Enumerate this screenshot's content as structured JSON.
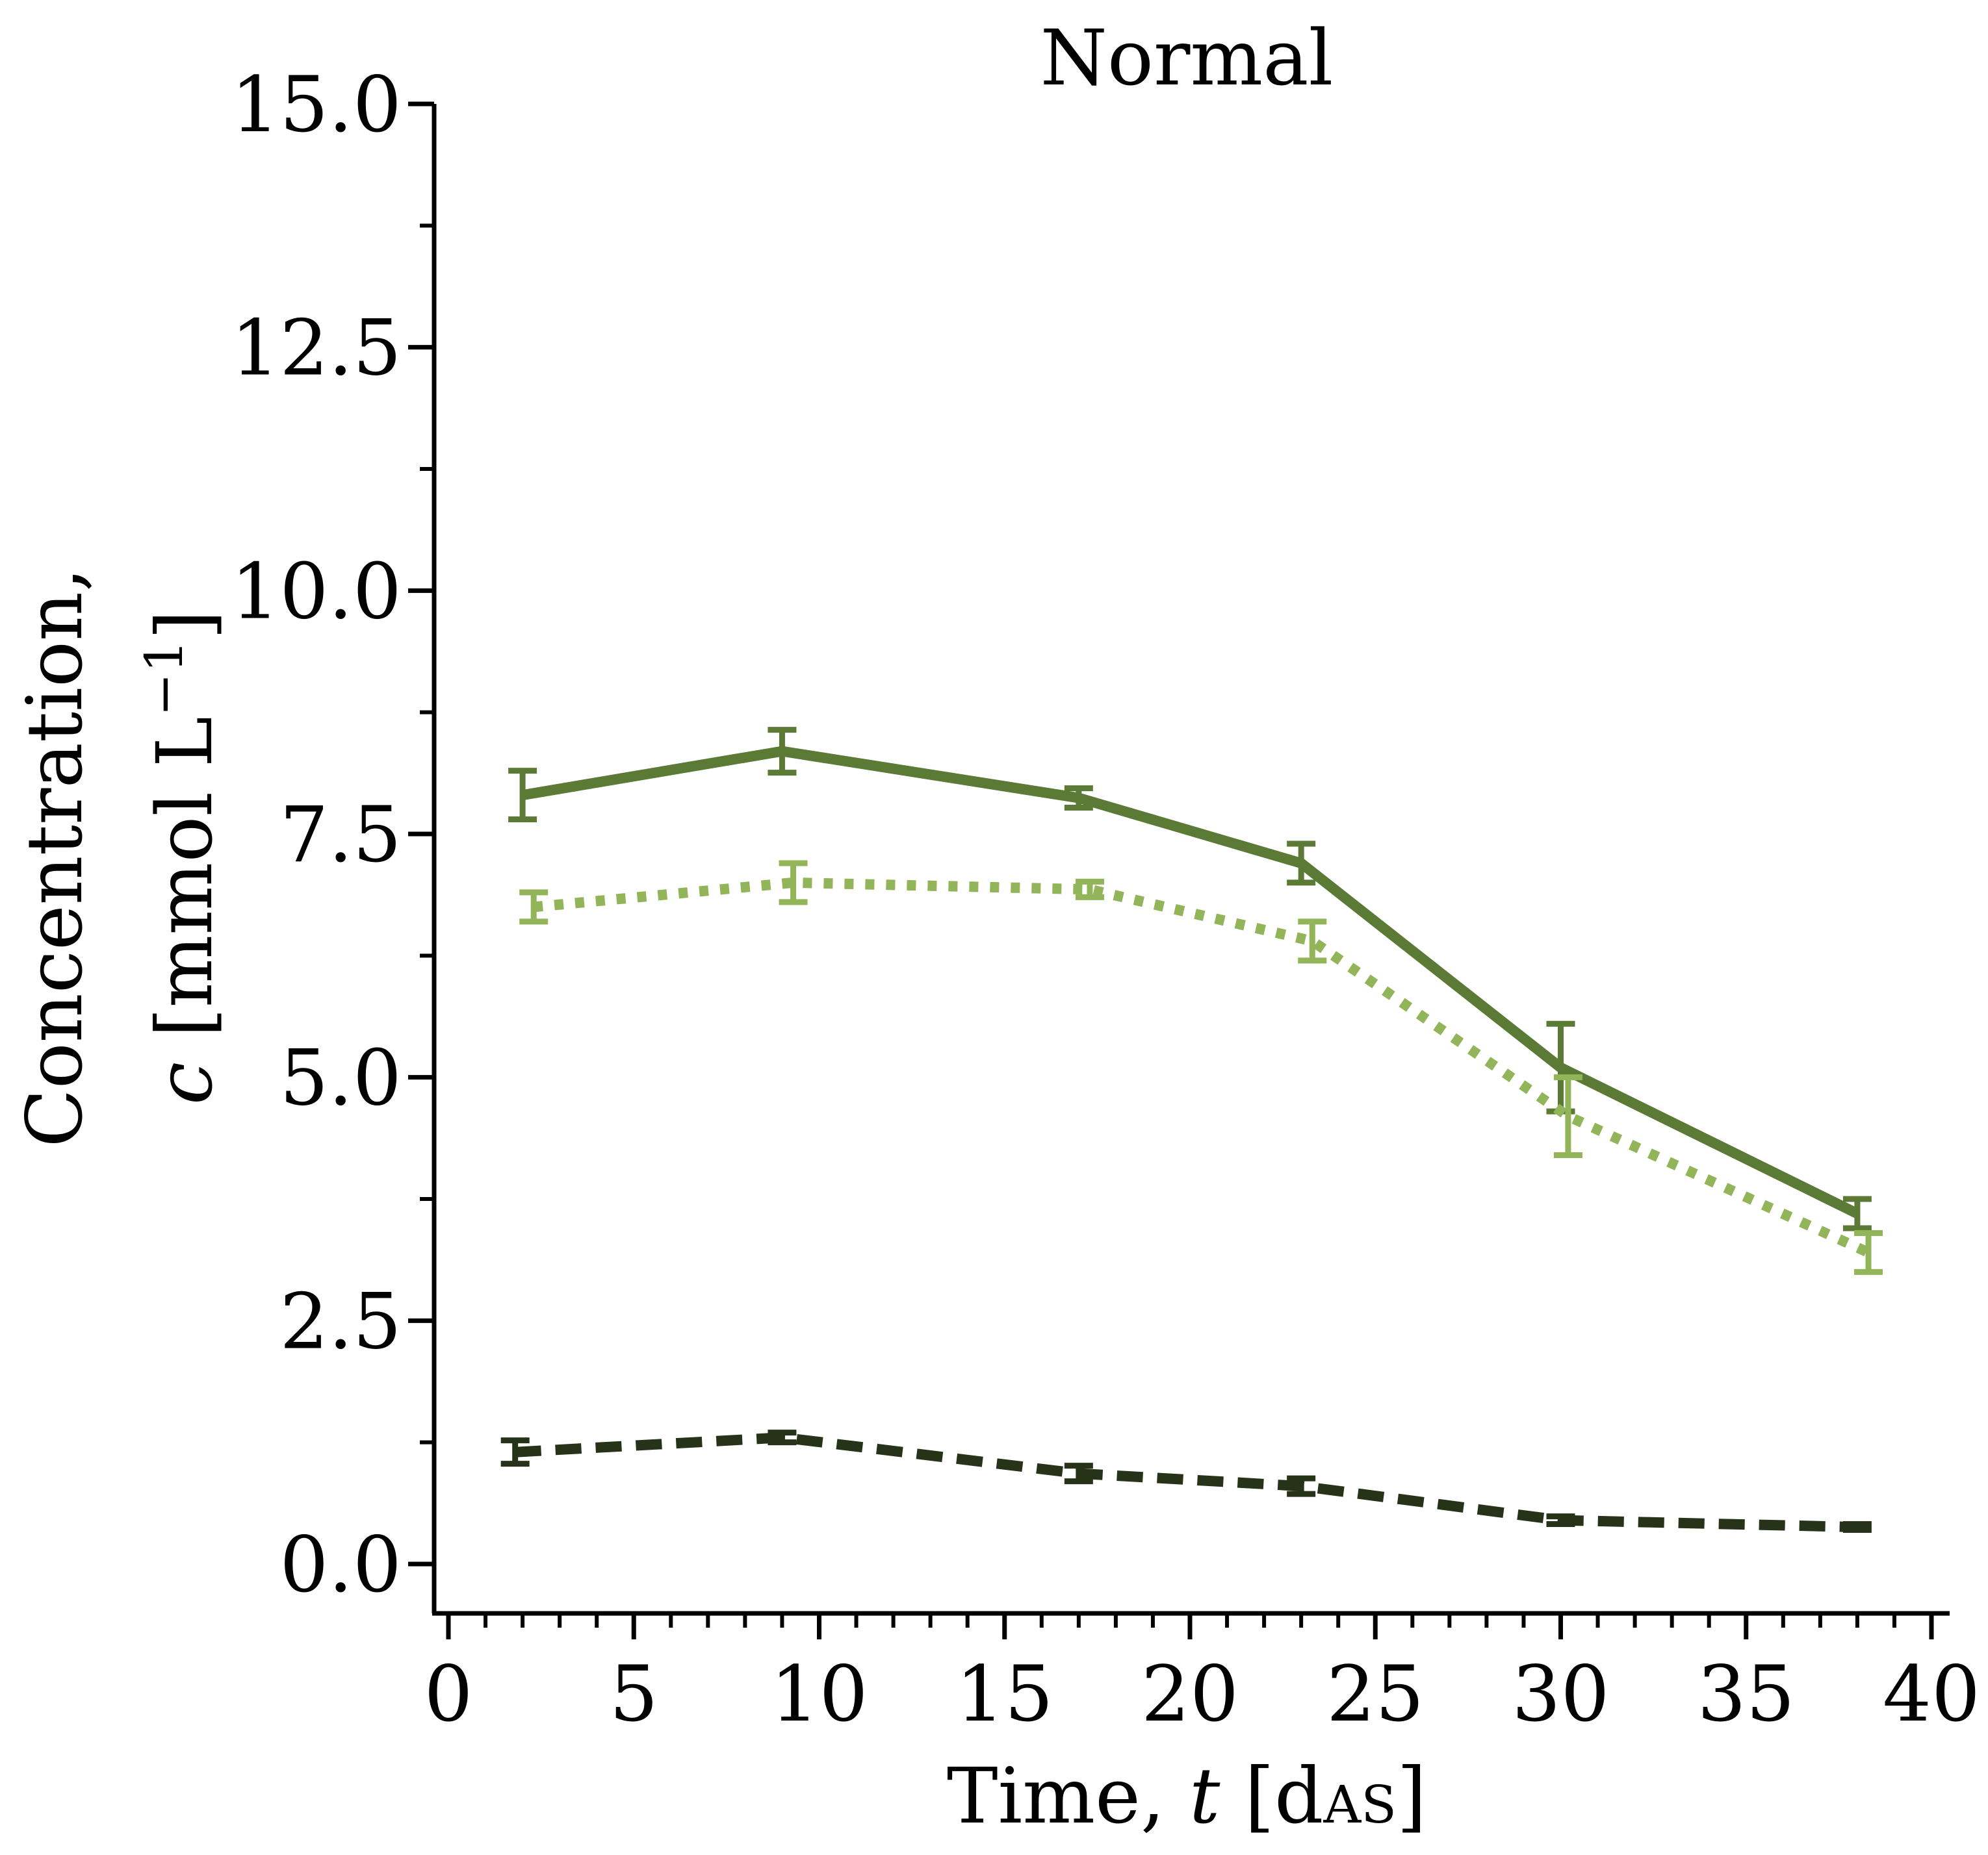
{
  "chart_data": {
    "type": "line",
    "title": "Normal",
    "xlabel": {
      "prefix": "Time, ",
      "var": "t",
      "open": " [d",
      "sub": "AS",
      "close": "]"
    },
    "ylabel": {
      "line1": "Concentration,",
      "var": "c",
      "line2_open": " [mmol L",
      "sup": "−1",
      "line2_close": "]"
    },
    "xlim": [
      0,
      40
    ],
    "ylim": [
      0,
      15
    ],
    "xticks": [
      "0",
      "5",
      "10",
      "15",
      "20",
      "25",
      "30",
      "35",
      "40"
    ],
    "yticks": [
      "0.0",
      "2.5",
      "5.0",
      "7.5",
      "10.0",
      "12.5",
      "15.0"
    ],
    "grid": false,
    "series": [
      {
        "style": "solid",
        "color": "#5b7a36",
        "points": [
          {
            "x": 2,
            "y": 7.9,
            "err": 0.25
          },
          {
            "x": 9,
            "y": 8.35,
            "err": 0.22
          },
          {
            "x": 17,
            "y": 7.87,
            "err": 0.1
          },
          {
            "x": 23,
            "y": 7.2,
            "err": 0.2
          },
          {
            "x": 30,
            "y": 5.1,
            "err": 0.45
          },
          {
            "x": 38,
            "y": 3.6,
            "err": 0.15
          }
        ]
      },
      {
        "style": "dotted",
        "color": "#92b55a",
        "points": [
          {
            "x": 2.3,
            "y": 6.75,
            "err": 0.15
          },
          {
            "x": 9.3,
            "y": 7.0,
            "err": 0.2
          },
          {
            "x": 17.3,
            "y": 6.93,
            "err": 0.08
          },
          {
            "x": 23.3,
            "y": 6.4,
            "err": 0.2
          },
          {
            "x": 30.2,
            "y": 4.6,
            "err": 0.4
          },
          {
            "x": 38.3,
            "y": 3.2,
            "err": 0.2
          }
        ]
      },
      {
        "style": "dashed",
        "color": "#263318",
        "points": [
          {
            "x": 1.8,
            "y": 1.15,
            "err": 0.12
          },
          {
            "x": 9.0,
            "y": 1.3,
            "err": 0.05
          },
          {
            "x": 17.0,
            "y": 0.93,
            "err": 0.08
          },
          {
            "x": 23.0,
            "y": 0.8,
            "err": 0.08
          },
          {
            "x": 30.0,
            "y": 0.45,
            "err": 0.04
          },
          {
            "x": 38.0,
            "y": 0.38,
            "err": 0.03
          }
        ]
      }
    ]
  }
}
